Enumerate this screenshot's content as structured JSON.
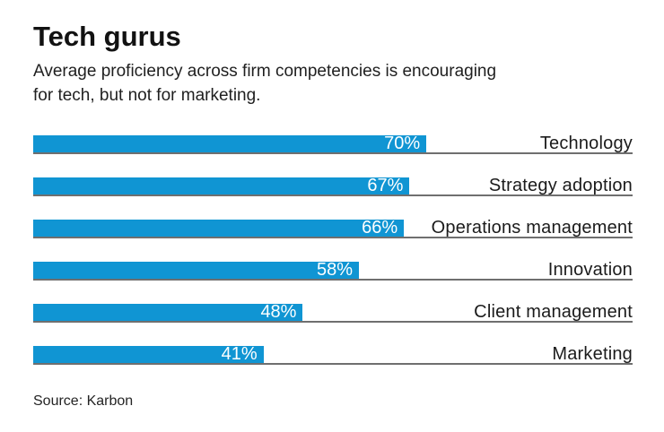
{
  "header": {
    "title": "Tech gurus",
    "subtitle_lines": [
      "Average proficiency across firm competencies is encouraging",
      "for tech, but not for marketing."
    ]
  },
  "chart_data": {
    "type": "bar",
    "orientation": "horizontal",
    "title": "Tech gurus",
    "subtitle": "Average proficiency across firm competencies is encouraging for tech, but not for marketing.",
    "categories": [
      "Technology",
      "Strategy adoption",
      "Operations management",
      "Innovation",
      "Client management",
      "Marketing"
    ],
    "values": [
      70,
      67,
      66,
      58,
      48,
      41
    ],
    "value_suffix": "%",
    "xlim": [
      0,
      100
    ],
    "grid": false,
    "legend": false,
    "bar_color": "#1095d3",
    "value_label_color": "#ffffff",
    "value_label_position": "inside-end",
    "category_label_position": "right",
    "row_underline_color": "#6f6f6f"
  },
  "footer": {
    "source": "Source: Karbon"
  }
}
